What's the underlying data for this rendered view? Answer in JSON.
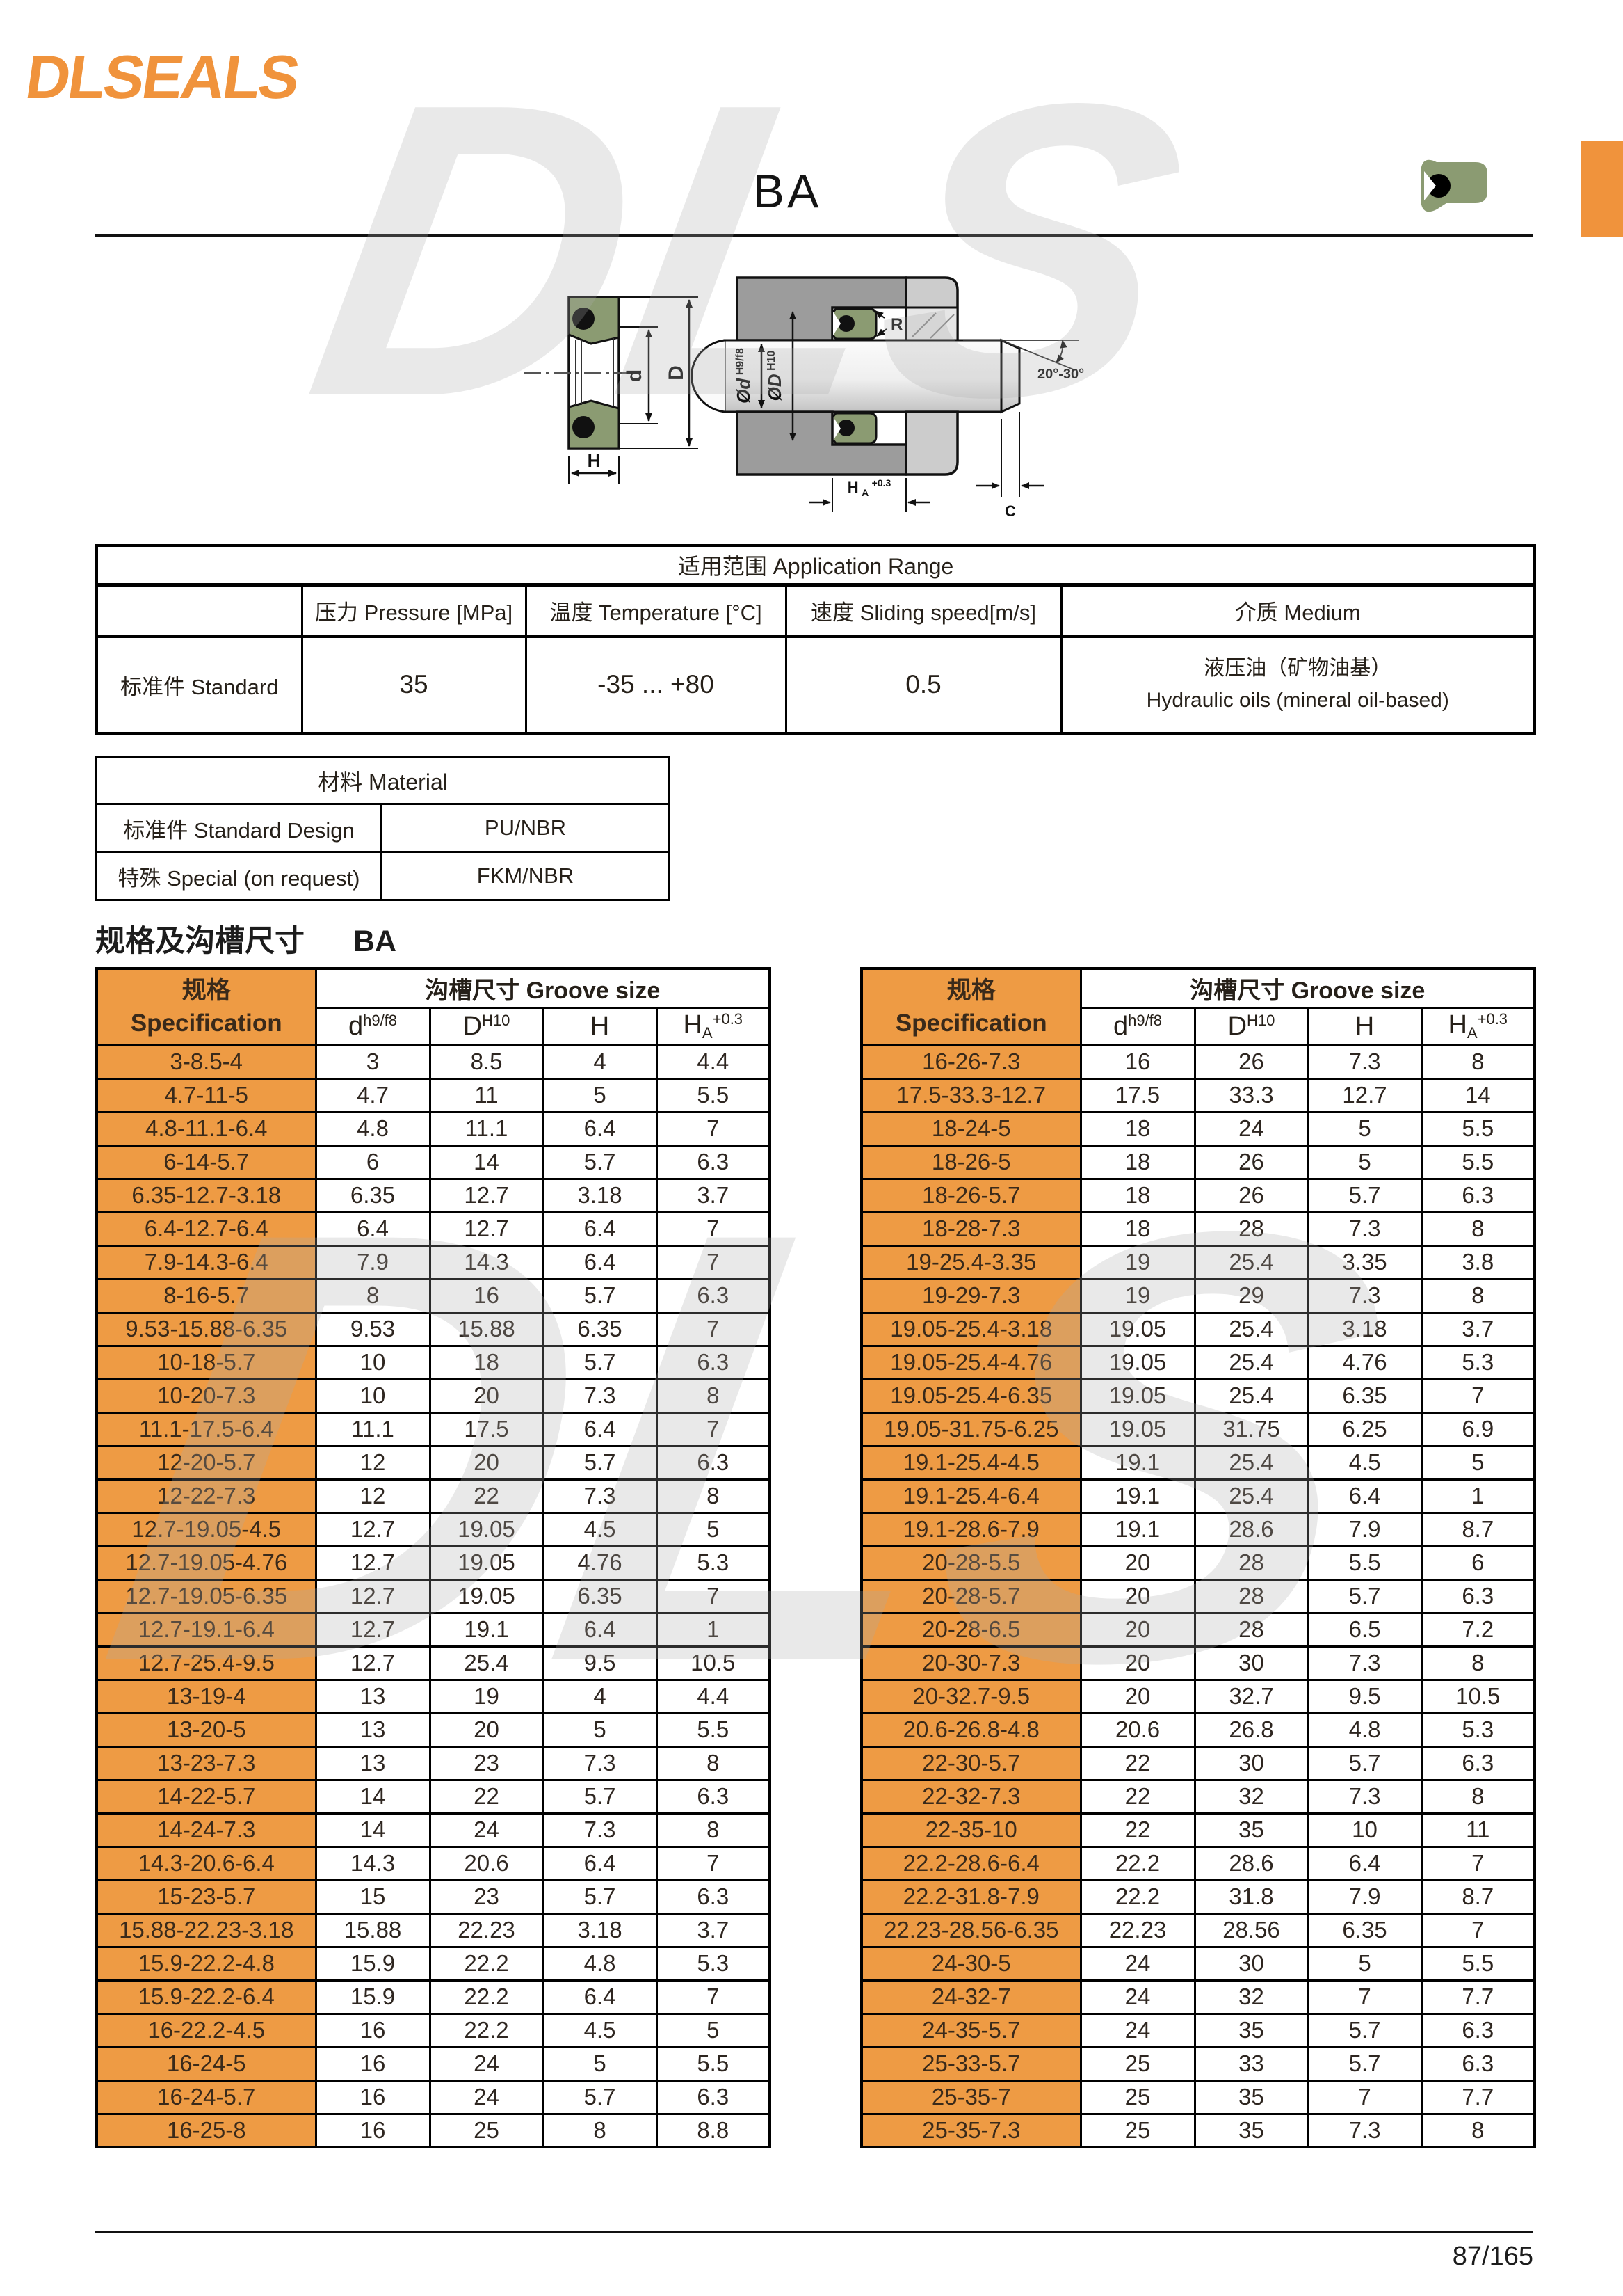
{
  "logo_text": "DLSEALS",
  "watermark": "DLS",
  "page": {
    "title": "BA",
    "page_number": "87/165"
  },
  "colors": {
    "accent_orange": "#F0933C",
    "table_orange": "#EE9B44",
    "seal_green": "#8B9B72",
    "housing_gray": "#9C9C9C",
    "housing_light_gray": "#CCCCCC"
  },
  "drawing_labels": {
    "d": "d",
    "D": "D",
    "H": "H",
    "shaft": "Ød",
    "shaft_sup": "H9/f8",
    "bore": "ØD",
    "bore_sup": "H10",
    "radius": "R",
    "angle": "20°-30°",
    "chamfer": "C",
    "ha_main": "H",
    "ha_sub": "A",
    "ha_sup": "+0.3"
  },
  "application_range": {
    "title": "适用范围 Application Range",
    "columns": [
      "压力 Pressure [MPa]",
      "温度 Temperature [°C]",
      "速度 Sliding speed[m/s]",
      "介质 Medium"
    ],
    "row_label": "标准件 Standard",
    "pressure": "35",
    "temperature": "-35 ... +80",
    "speed": "0.5",
    "medium_cn": "液压油（矿物油基）",
    "medium_en": "Hydraulic oils (mineral oil-based)"
  },
  "material": {
    "title": "材料 Material",
    "rows": [
      {
        "label": "标准件 Standard Design",
        "value": "PU/NBR"
      },
      {
        "label": "特殊 Special (on request)",
        "value": "FKM/NBR"
      }
    ]
  },
  "section": {
    "label_cn": "规格及沟槽尺寸",
    "code": "BA"
  },
  "groove_header": {
    "spec_cn": "规格",
    "spec_en": "Specification",
    "groove_title": "沟槽尺寸 Groove size",
    "col_d": "d",
    "col_d_sup": "h9/f8",
    "col_D": "D",
    "col_D_sup": "H10",
    "col_H": "H",
    "col_HA_main": "H",
    "col_HA_sub": "A",
    "col_HA_sup": "+0.3"
  },
  "left_table": [
    [
      "3-8.5-4",
      "3",
      "8.5",
      "4",
      "4.4"
    ],
    [
      "4.7-11-5",
      "4.7",
      "11",
      "5",
      "5.5"
    ],
    [
      "4.8-11.1-6.4",
      "4.8",
      "11.1",
      "6.4",
      "7"
    ],
    [
      "6-14-5.7",
      "6",
      "14",
      "5.7",
      "6.3"
    ],
    [
      "6.35-12.7-3.18",
      "6.35",
      "12.7",
      "3.18",
      "3.7"
    ],
    [
      "6.4-12.7-6.4",
      "6.4",
      "12.7",
      "6.4",
      "7"
    ],
    [
      "7.9-14.3-6.4",
      "7.9",
      "14.3",
      "6.4",
      "7"
    ],
    [
      "8-16-5.7",
      "8",
      "16",
      "5.7",
      "6.3"
    ],
    [
      "9.53-15.88-6.35",
      "9.53",
      "15.88",
      "6.35",
      "7"
    ],
    [
      "10-18-5.7",
      "10",
      "18",
      "5.7",
      "6.3"
    ],
    [
      "10-20-7.3",
      "10",
      "20",
      "7.3",
      "8"
    ],
    [
      "11.1-17.5-6.4",
      "11.1",
      "17.5",
      "6.4",
      "7"
    ],
    [
      "12-20-5.7",
      "12",
      "20",
      "5.7",
      "6.3"
    ],
    [
      "12-22-7.3",
      "12",
      "22",
      "7.3",
      "8"
    ],
    [
      "12.7-19.05-4.5",
      "12.7",
      "19.05",
      "4.5",
      "5"
    ],
    [
      "12.7-19.05-4.76",
      "12.7",
      "19.05",
      "4.76",
      "5.3"
    ],
    [
      "12.7-19.05-6.35",
      "12.7",
      "19.05",
      "6.35",
      "7"
    ],
    [
      "12.7-19.1-6.4",
      "12.7",
      "19.1",
      "6.4",
      "1"
    ],
    [
      "12.7-25.4-9.5",
      "12.7",
      "25.4",
      "9.5",
      "10.5"
    ],
    [
      "13-19-4",
      "13",
      "19",
      "4",
      "4.4"
    ],
    [
      "13-20-5",
      "13",
      "20",
      "5",
      "5.5"
    ],
    [
      "13-23-7.3",
      "13",
      "23",
      "7.3",
      "8"
    ],
    [
      "14-22-5.7",
      "14",
      "22",
      "5.7",
      "6.3"
    ],
    [
      "14-24-7.3",
      "14",
      "24",
      "7.3",
      "8"
    ],
    [
      "14.3-20.6-6.4",
      "14.3",
      "20.6",
      "6.4",
      "7"
    ],
    [
      "15-23-5.7",
      "15",
      "23",
      "5.7",
      "6.3"
    ],
    [
      "15.88-22.23-3.18",
      "15.88",
      "22.23",
      "3.18",
      "3.7"
    ],
    [
      "15.9-22.2-4.8",
      "15.9",
      "22.2",
      "4.8",
      "5.3"
    ],
    [
      "15.9-22.2-6.4",
      "15.9",
      "22.2",
      "6.4",
      "7"
    ],
    [
      "16-22.2-4.5",
      "16",
      "22.2",
      "4.5",
      "5"
    ],
    [
      "16-24-5",
      "16",
      "24",
      "5",
      "5.5"
    ],
    [
      "16-24-5.7",
      "16",
      "24",
      "5.7",
      "6.3"
    ],
    [
      "16-25-8",
      "16",
      "25",
      "8",
      "8.8"
    ]
  ],
  "right_table": [
    [
      "16-26-7.3",
      "16",
      "26",
      "7.3",
      "8"
    ],
    [
      "17.5-33.3-12.7",
      "17.5",
      "33.3",
      "12.7",
      "14"
    ],
    [
      "18-24-5",
      "18",
      "24",
      "5",
      "5.5"
    ],
    [
      "18-26-5",
      "18",
      "26",
      "5",
      "5.5"
    ],
    [
      "18-26-5.7",
      "18",
      "26",
      "5.7",
      "6.3"
    ],
    [
      "18-28-7.3",
      "18",
      "28",
      "7.3",
      "8"
    ],
    [
      "19-25.4-3.35",
      "19",
      "25.4",
      "3.35",
      "3.8"
    ],
    [
      "19-29-7.3",
      "19",
      "29",
      "7.3",
      "8"
    ],
    [
      "19.05-25.4-3.18",
      "19.05",
      "25.4",
      "3.18",
      "3.7"
    ],
    [
      "19.05-25.4-4.76",
      "19.05",
      "25.4",
      "4.76",
      "5.3"
    ],
    [
      "19.05-25.4-6.35",
      "19.05",
      "25.4",
      "6.35",
      "7"
    ],
    [
      "19.05-31.75-6.25",
      "19.05",
      "31.75",
      "6.25",
      "6.9"
    ],
    [
      "19.1-25.4-4.5",
      "19.1",
      "25.4",
      "4.5",
      "5"
    ],
    [
      "19.1-25.4-6.4",
      "19.1",
      "25.4",
      "6.4",
      "1"
    ],
    [
      "19.1-28.6-7.9",
      "19.1",
      "28.6",
      "7.9",
      "8.7"
    ],
    [
      "20-28-5.5",
      "20",
      "28",
      "5.5",
      "6"
    ],
    [
      "20-28-5.7",
      "20",
      "28",
      "5.7",
      "6.3"
    ],
    [
      "20-28-6.5",
      "20",
      "28",
      "6.5",
      "7.2"
    ],
    [
      "20-30-7.3",
      "20",
      "30",
      "7.3",
      "8"
    ],
    [
      "20-32.7-9.5",
      "20",
      "32.7",
      "9.5",
      "10.5"
    ],
    [
      "20.6-26.8-4.8",
      "20.6",
      "26.8",
      "4.8",
      "5.3"
    ],
    [
      "22-30-5.7",
      "22",
      "30",
      "5.7",
      "6.3"
    ],
    [
      "22-32-7.3",
      "22",
      "32",
      "7.3",
      "8"
    ],
    [
      "22-35-10",
      "22",
      "35",
      "10",
      "11"
    ],
    [
      "22.2-28.6-6.4",
      "22.2",
      "28.6",
      "6.4",
      "7"
    ],
    [
      "22.2-31.8-7.9",
      "22.2",
      "31.8",
      "7.9",
      "8.7"
    ],
    [
      "22.23-28.56-6.35",
      "22.23",
      "28.56",
      "6.35",
      "7"
    ],
    [
      "24-30-5",
      "24",
      "30",
      "5",
      "5.5"
    ],
    [
      "24-32-7",
      "24",
      "32",
      "7",
      "7.7"
    ],
    [
      "24-35-5.7",
      "24",
      "35",
      "5.7",
      "6.3"
    ],
    [
      "25-33-5.7",
      "25",
      "33",
      "5.7",
      "6.3"
    ],
    [
      "25-35-7",
      "25",
      "35",
      "7",
      "7.7"
    ],
    [
      "25-35-7.3",
      "25",
      "35",
      "7.3",
      "8"
    ]
  ]
}
